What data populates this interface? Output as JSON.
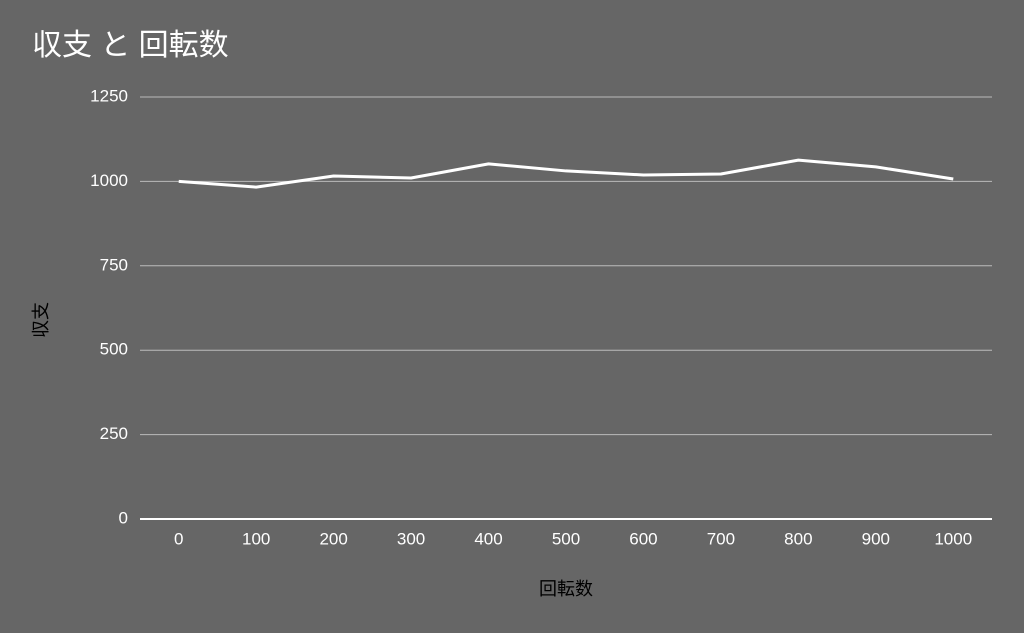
{
  "chart_data": {
    "type": "line",
    "title": "収支 と 回転数",
    "x_label": "回転数",
    "y_label": "収支",
    "categories": [
      "0",
      "100",
      "200",
      "300",
      "400",
      "500",
      "600",
      "700",
      "800",
      "900",
      "1000"
    ],
    "series": [
      {
        "name": "収支",
        "color": "#ffffff",
        "values": [
          1000,
          983,
          1016,
          1010,
          1052,
          1031,
          1019,
          1022,
          1063,
          1043,
          1007
        ]
      }
    ],
    "ylim": [
      0,
      1250
    ],
    "yticks": [
      0,
      250,
      500,
      750,
      1000,
      1250
    ],
    "grid": true
  }
}
